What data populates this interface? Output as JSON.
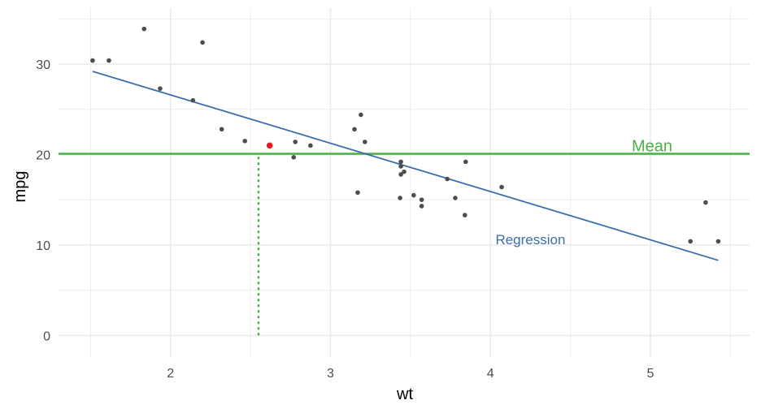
{
  "chart_data": {
    "type": "scatter",
    "title": "",
    "xlabel": "wt",
    "ylabel": "mpg",
    "xlim": [
      1.3,
      5.62
    ],
    "ylim": [
      -2.4,
      36.2
    ],
    "x_ticks": [
      2,
      3,
      4,
      5
    ],
    "y_ticks": [
      0,
      10,
      20,
      30
    ],
    "grid": true,
    "legend": "none",
    "colors": {
      "points": "#4d4d4d",
      "highlight": "#e41a1c",
      "mean": "#4daf4a",
      "regression": "#3a6eaa",
      "grid": "#ebebeb"
    },
    "points": [
      {
        "x": 1.513,
        "y": 30.4
      },
      {
        "x": 1.615,
        "y": 30.4
      },
      {
        "x": 1.835,
        "y": 33.9
      },
      {
        "x": 1.935,
        "y": 27.3
      },
      {
        "x": 2.14,
        "y": 26.0
      },
      {
        "x": 2.2,
        "y": 32.4
      },
      {
        "x": 2.32,
        "y": 22.8
      },
      {
        "x": 2.465,
        "y": 21.5
      },
      {
        "x": 2.77,
        "y": 19.7
      },
      {
        "x": 2.78,
        "y": 21.4
      },
      {
        "x": 2.875,
        "y": 21.0
      },
      {
        "x": 3.15,
        "y": 22.8
      },
      {
        "x": 3.17,
        "y": 15.8
      },
      {
        "x": 3.19,
        "y": 24.4
      },
      {
        "x": 3.215,
        "y": 21.4
      },
      {
        "x": 3.435,
        "y": 15.2
      },
      {
        "x": 3.44,
        "y": 18.7
      },
      {
        "x": 3.44,
        "y": 19.2
      },
      {
        "x": 3.44,
        "y": 17.8
      },
      {
        "x": 3.46,
        "y": 18.1
      },
      {
        "x": 3.52,
        "y": 15.5
      },
      {
        "x": 3.57,
        "y": 14.3
      },
      {
        "x": 3.57,
        "y": 15.0
      },
      {
        "x": 3.73,
        "y": 17.3
      },
      {
        "x": 3.78,
        "y": 15.2
      },
      {
        "x": 3.84,
        "y": 13.3
      },
      {
        "x": 3.845,
        "y": 19.2
      },
      {
        "x": 4.07,
        "y": 16.4
      },
      {
        "x": 5.25,
        "y": 10.4
      },
      {
        "x": 5.345,
        "y": 14.7
      },
      {
        "x": 5.424,
        "y": 10.4
      }
    ],
    "highlight_point": {
      "x": 2.62,
      "y": 21.0
    },
    "mean_line": {
      "y": 20.09,
      "label": "Mean"
    },
    "regression_line": {
      "x": [
        1.513,
        5.424
      ],
      "y": [
        29.2,
        8.3
      ],
      "label": "Regression"
    },
    "residual_line": {
      "x": 2.55,
      "y_from": 0,
      "y_to": 20.09
    }
  }
}
